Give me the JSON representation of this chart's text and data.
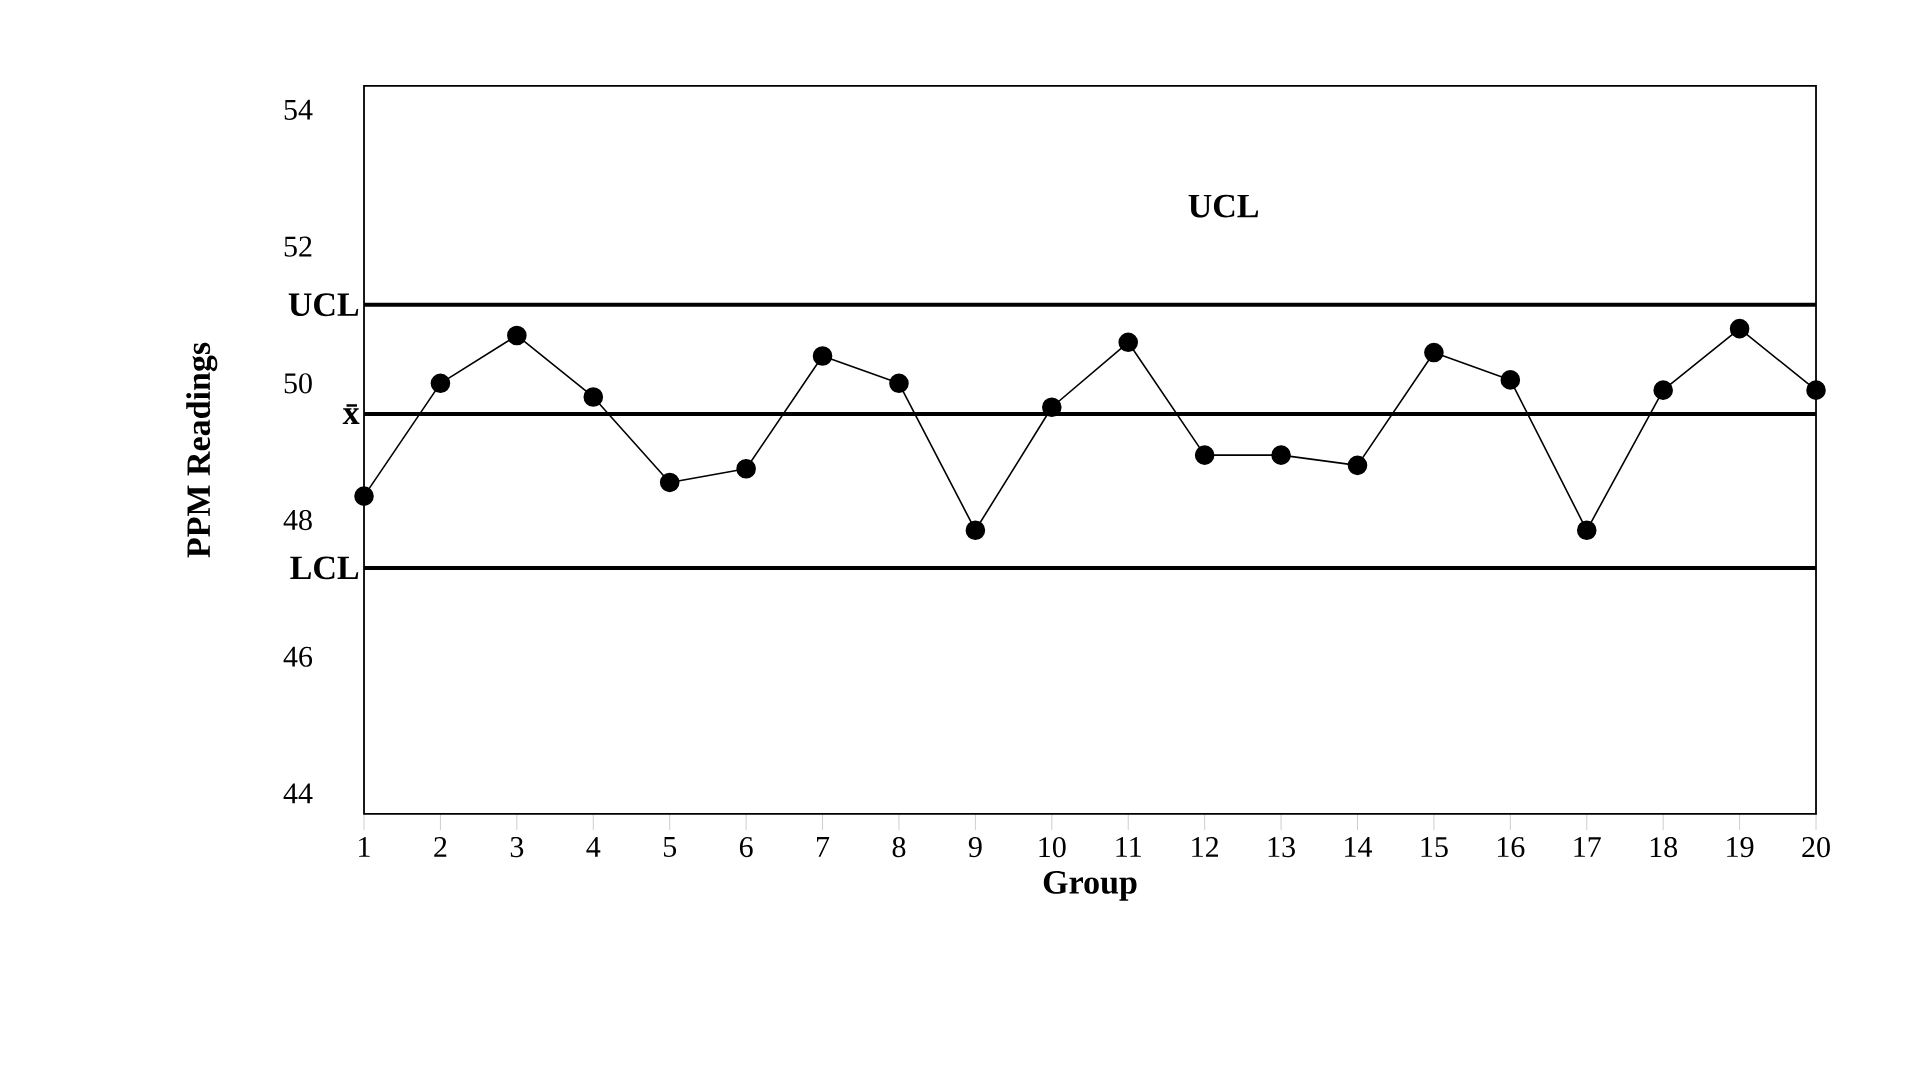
{
  "chart_data": {
    "type": "line",
    "xlabel": "Group",
    "ylabel": "PPM Readings",
    "x": [
      1,
      2,
      3,
      4,
      5,
      6,
      7,
      8,
      9,
      10,
      11,
      12,
      13,
      14,
      15,
      16,
      17,
      18,
      19,
      20
    ],
    "series": [
      {
        "color": "#000000",
        "values": [
          48.35,
          50.0,
          50.7,
          49.8,
          48.55,
          48.75,
          50.4,
          50.0,
          47.85,
          49.65,
          50.6,
          48.95,
          48.95,
          48.8,
          50.45,
          50.05,
          47.85,
          49.9,
          50.8,
          49.9
        ]
      }
    ],
    "xlim": [
      1,
      20
    ],
    "xticks": [
      1,
      2,
      3,
      4,
      5,
      6,
      7,
      8,
      9,
      10,
      11,
      12,
      13,
      14,
      15,
      16,
      17,
      18,
      19,
      20
    ],
    "ylim": [
      43.7,
      54.35
    ],
    "yticks": [
      44,
      46,
      48,
      50,
      52,
      54
    ],
    "ref_lines": [
      {
        "axis": "y",
        "value": 51.15,
        "label": "UCL",
        "color": "#000000"
      },
      {
        "axis": "y",
        "value": 49.55,
        "label": "x̄",
        "color": "#000000"
      },
      {
        "axis": "y",
        "value": 47.3,
        "label": "LCL",
        "color": "#000000"
      }
    ],
    "annotations": [
      "UCL"
    ],
    "marker": "circle",
    "line_style": "solid",
    "grid": false
  }
}
